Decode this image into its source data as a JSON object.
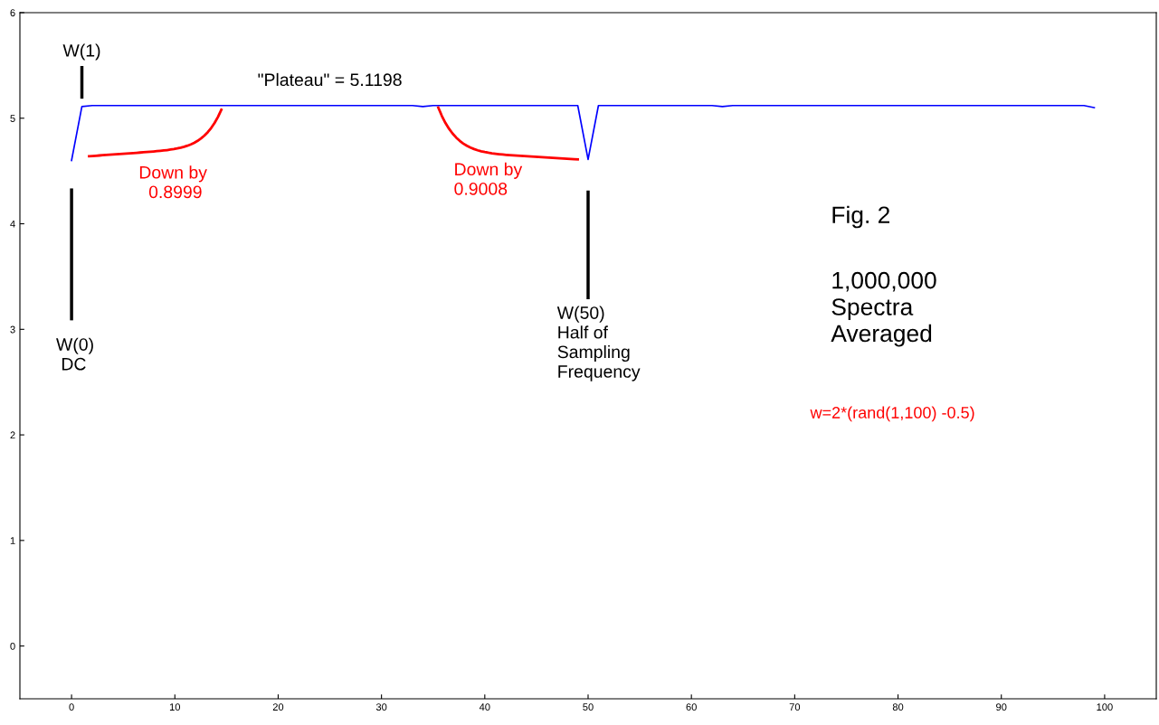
{
  "chart_data": {
    "type": "line",
    "x": [
      0,
      1,
      2,
      3,
      4,
      5,
      6,
      7,
      8,
      9,
      10,
      11,
      12,
      13,
      14,
      15,
      16,
      17,
      18,
      19,
      20,
      21,
      22,
      23,
      24,
      25,
      26,
      27,
      28,
      29,
      30,
      31,
      32,
      33,
      34,
      35,
      36,
      37,
      38,
      39,
      40,
      41,
      42,
      43,
      44,
      45,
      46,
      47,
      48,
      49,
      50,
      51,
      52,
      53,
      54,
      55,
      56,
      57,
      58,
      59,
      60,
      61,
      62,
      63,
      64,
      65,
      66,
      67,
      68,
      69,
      70,
      71,
      72,
      73,
      74,
      75,
      76,
      77,
      78,
      79,
      80,
      81,
      82,
      83,
      84,
      85,
      86,
      87,
      88,
      89,
      90,
      91,
      92,
      93,
      94,
      95,
      96,
      97,
      98,
      99
    ],
    "series": [
      {
        "color": "#0000ff",
        "values": [
          4.6,
          5.11,
          5.12,
          5.12,
          5.12,
          5.12,
          5.12,
          5.12,
          5.12,
          5.12,
          5.12,
          5.12,
          5.12,
          5.12,
          5.12,
          5.12,
          5.12,
          5.12,
          5.12,
          5.12,
          5.12,
          5.12,
          5.12,
          5.12,
          5.12,
          5.12,
          5.12,
          5.12,
          5.12,
          5.12,
          5.12,
          5.12,
          5.12,
          5.12,
          5.11,
          5.12,
          5.12,
          5.12,
          5.12,
          5.12,
          5.12,
          5.12,
          5.12,
          5.12,
          5.12,
          5.12,
          5.12,
          5.12,
          5.12,
          5.12,
          4.61,
          5.12,
          5.12,
          5.12,
          5.12,
          5.12,
          5.12,
          5.12,
          5.12,
          5.12,
          5.12,
          5.12,
          5.12,
          5.11,
          5.12,
          5.12,
          5.12,
          5.12,
          5.12,
          5.12,
          5.12,
          5.12,
          5.12,
          5.12,
          5.12,
          5.12,
          5.12,
          5.12,
          5.12,
          5.12,
          5.12,
          5.12,
          5.12,
          5.12,
          5.12,
          5.12,
          5.12,
          5.12,
          5.12,
          5.12,
          5.12,
          5.12,
          5.12,
          5.12,
          5.12,
          5.12,
          5.12,
          5.12,
          5.12,
          5.1
        ]
      }
    ],
    "xlim": [
      -5,
      105
    ],
    "ylim": [
      -0.5,
      6
    ],
    "xticks": [
      0,
      10,
      20,
      30,
      40,
      50,
      60,
      70,
      80,
      90,
      100
    ],
    "yticks": [
      0,
      1,
      2,
      3,
      4,
      5,
      6
    ],
    "annotations": [
      "W(1)",
      "\"Plateau\" = 5.1198",
      "Down by\n  0.8999",
      "Down by\n0.9008",
      "W(0)\n DC",
      "W(50)\nHalf of\nSampling\nFrequency",
      "Fig. 2",
      "1,000,000\nSpectra\nAveraged",
      "w=2*(rand(1,100) -0.5)"
    ]
  }
}
